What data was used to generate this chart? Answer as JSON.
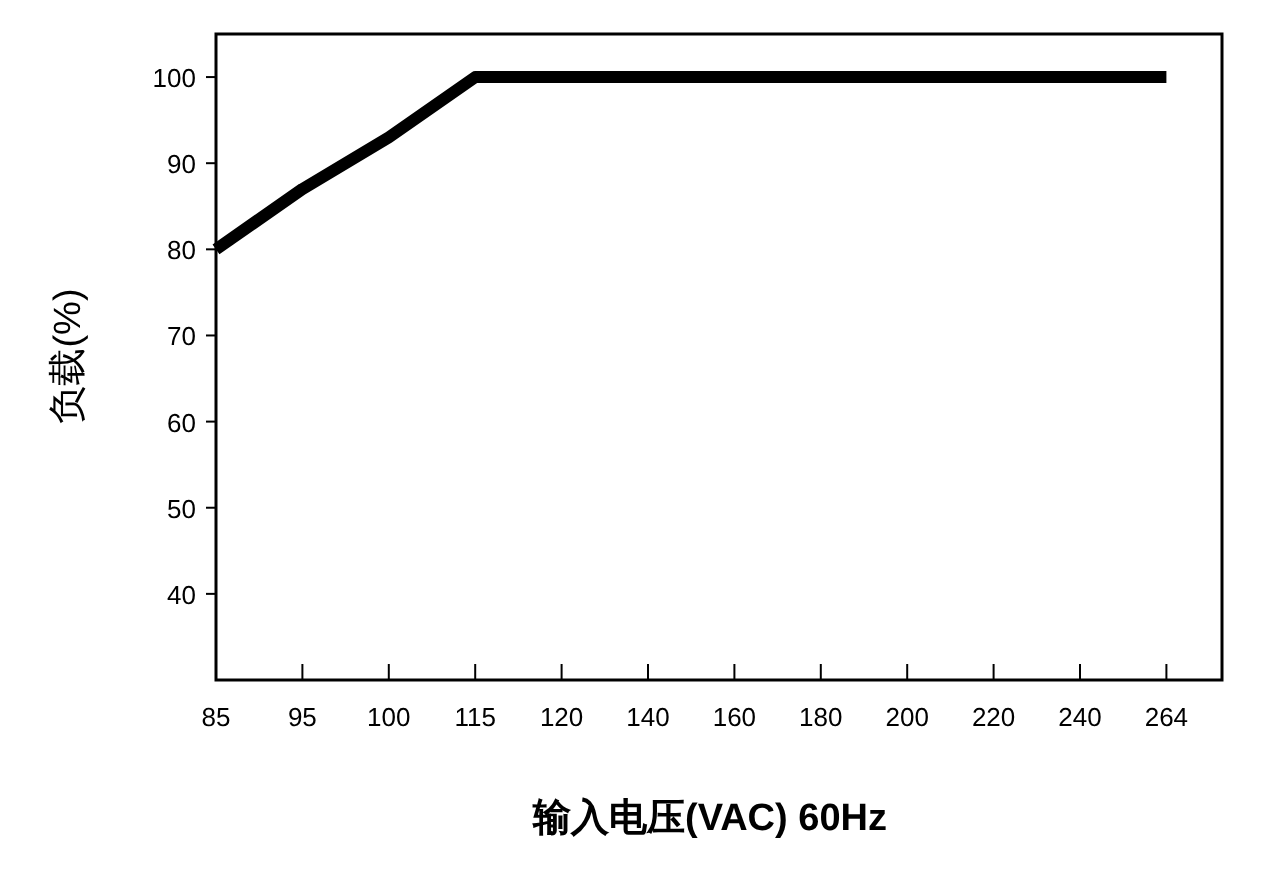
{
  "chart_data": {
    "type": "line",
    "xlabel": "输入电压(VAC) 60Hz",
    "ylabel": "负载(%)",
    "categories": [
      "85",
      "95",
      "100",
      "115",
      "120",
      "140",
      "160",
      "180",
      "200",
      "220",
      "240",
      "264"
    ],
    "series": [
      {
        "color": "#000000",
        "values": [
          80,
          87,
          93,
          100,
          100,
          100,
          100,
          100,
          100,
          100,
          100,
          100
        ]
      }
    ],
    "ylim": [
      30,
      105
    ],
    "yticks": [
      40,
      50,
      60,
      70,
      80,
      90,
      100
    ],
    "marker": "none",
    "line_style": "solid"
  }
}
